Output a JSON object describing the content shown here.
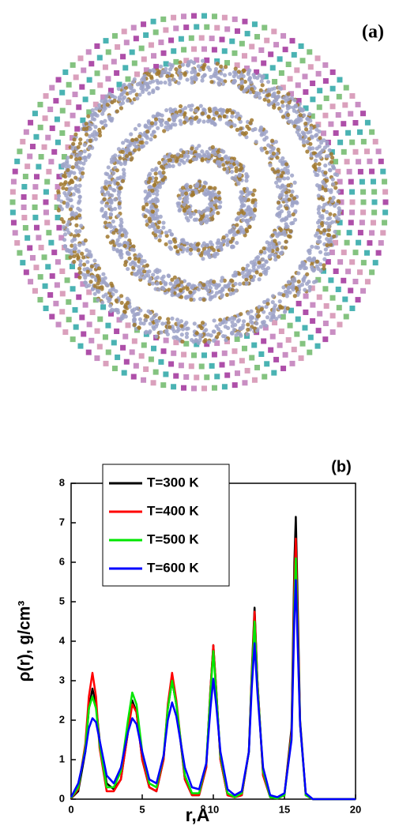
{
  "panel_a": {
    "label": "(a)"
  },
  "chart_data": {
    "type": "line",
    "annotation": "(b)",
    "x_label": "r,Å",
    "y_label": "ρ(r), g/cm³",
    "xlim": [
      0,
      20
    ],
    "xticks": [
      0,
      5,
      10,
      15,
      20
    ],
    "ylim": [
      0,
      8
    ],
    "yticks": [
      0,
      1,
      2,
      3,
      4,
      5,
      6,
      7,
      8
    ],
    "legend": "upper-left",
    "x": [
      0,
      0.5,
      1.0,
      1.25,
      1.5,
      1.75,
      2.0,
      2.5,
      3.0,
      3.5,
      4.0,
      4.3,
      4.6,
      5.0,
      5.5,
      6.0,
      6.5,
      6.8,
      7.1,
      7.4,
      8.0,
      8.5,
      9.0,
      9.5,
      9.8,
      10.0,
      10.2,
      10.5,
      11.0,
      11.5,
      12.0,
      12.5,
      12.7,
      12.9,
      13.1,
      13.5,
      14.0,
      14.5,
      15.0,
      15.5,
      15.7,
      15.8,
      15.9,
      16.1,
      16.5,
      17,
      18,
      20
    ],
    "series": [
      {
        "name": "T=300 K",
        "color": "#000000",
        "values": [
          0.02,
          0.2,
          1.2,
          2.3,
          2.8,
          2.4,
          1.5,
          0.4,
          0.25,
          0.5,
          1.7,
          2.5,
          2.2,
          1.0,
          0.3,
          0.2,
          1.0,
          2.3,
          3.0,
          2.4,
          0.5,
          0.1,
          0.1,
          0.8,
          2.8,
          3.9,
          2.8,
          1.0,
          0.1,
          0.05,
          0.1,
          1.2,
          3.2,
          4.85,
          3.0,
          0.6,
          0.05,
          0.02,
          0.1,
          1.8,
          6.0,
          7.15,
          5.5,
          2.0,
          0.1,
          0,
          0,
          0
        ]
      },
      {
        "name": "T=400 K",
        "color": "#ff0000",
        "values": [
          0.02,
          0.25,
          1.4,
          2.6,
          3.2,
          2.6,
          1.3,
          0.2,
          0.2,
          0.5,
          1.7,
          2.4,
          2.2,
          1.0,
          0.3,
          0.2,
          1.0,
          2.4,
          3.2,
          2.5,
          0.5,
          0.1,
          0.1,
          0.8,
          2.8,
          3.9,
          2.8,
          1.0,
          0.1,
          0.05,
          0.1,
          1.2,
          3.1,
          4.75,
          3.0,
          0.6,
          0.05,
          0.02,
          0.1,
          1.7,
          5.5,
          6.6,
          5.0,
          1.9,
          0.1,
          0,
          0,
          0
        ]
      },
      {
        "name": "T=500 K",
        "color": "#00e600",
        "values": [
          0.03,
          0.3,
          1.3,
          2.3,
          2.6,
          2.3,
          1.4,
          0.3,
          0.3,
          0.7,
          2.0,
          2.7,
          2.4,
          1.2,
          0.4,
          0.3,
          1.1,
          2.3,
          3.0,
          2.4,
          0.6,
          0.15,
          0.15,
          0.9,
          2.7,
          3.75,
          2.7,
          1.1,
          0.15,
          0.05,
          0.15,
          1.2,
          3.0,
          4.5,
          2.9,
          0.7,
          0.05,
          0.02,
          0.1,
          1.6,
          5.0,
          6.1,
          4.6,
          1.9,
          0.1,
          0,
          0,
          0
        ]
      },
      {
        "name": "T=600 K",
        "color": "#0000ff",
        "values": [
          0.05,
          0.4,
          1.2,
          1.8,
          2.05,
          1.95,
          1.5,
          0.6,
          0.4,
          0.8,
          1.7,
          2.05,
          1.9,
          1.2,
          0.5,
          0.4,
          1.1,
          2.0,
          2.45,
          2.1,
          0.8,
          0.3,
          0.25,
          0.9,
          2.3,
          3.05,
          2.4,
          1.2,
          0.25,
          0.1,
          0.2,
          1.2,
          2.8,
          3.95,
          2.7,
          0.8,
          0.1,
          0.05,
          0.15,
          1.5,
          4.6,
          5.55,
          4.3,
          1.9,
          0.15,
          0,
          0,
          0
        ]
      }
    ]
  }
}
